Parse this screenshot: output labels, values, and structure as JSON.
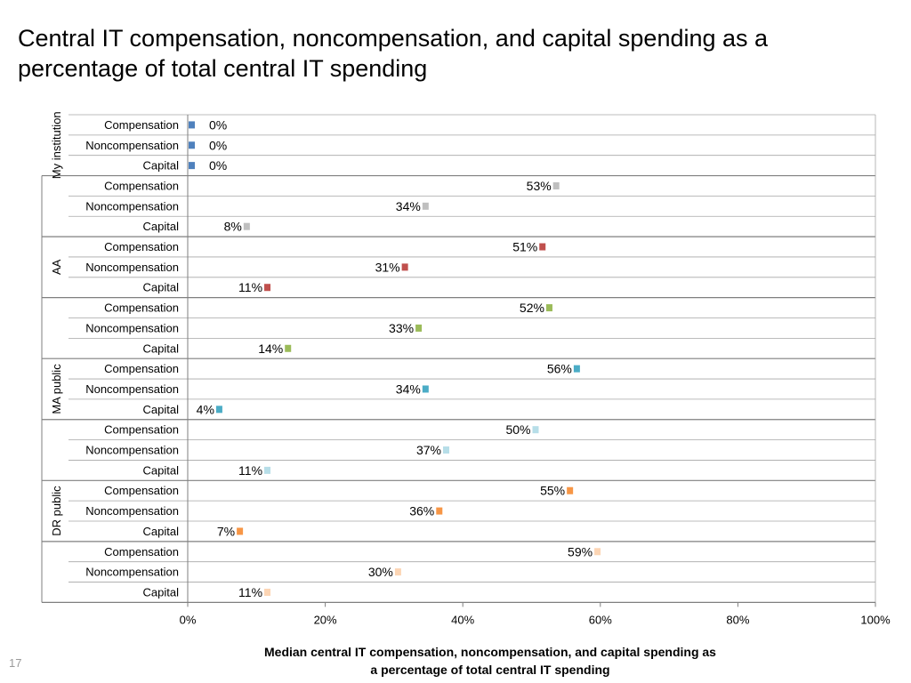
{
  "slide": {
    "title": "Central IT compensation, noncompensation, and capital spending as a percentage of total central IT spending",
    "page_number": "17"
  },
  "chart_data": {
    "type": "bar",
    "orientation": "horizontal",
    "xlabel": "Median central IT compensation, noncompensation, and capital spending as a percentage of total central IT spending",
    "xlim": [
      0,
      100
    ],
    "x_ticks": [
      "0%",
      "20%",
      "40%",
      "60%",
      "80%",
      "100%"
    ],
    "grid": false,
    "groups": [
      {
        "label": "My institution",
        "color": "#4f81bd",
        "categories": [
          "Compensation",
          "Noncompensation",
          "Capital"
        ],
        "values": [
          0,
          0,
          0
        ],
        "value_labels": [
          "0%",
          "0%",
          "0%"
        ]
      },
      {
        "label": "",
        "color": "#bfbfbf",
        "categories": [
          "Compensation",
          "Noncompensation",
          "Capital"
        ],
        "values": [
          53,
          34,
          8
        ],
        "value_labels": [
          "53%",
          "34%",
          "8%"
        ]
      },
      {
        "label": "AA",
        "color": "#c0504d",
        "categories": [
          "Compensation",
          "Noncompensation",
          "Capital"
        ],
        "values": [
          51,
          31,
          11
        ],
        "value_labels": [
          "51%",
          "31%",
          "11%"
        ]
      },
      {
        "label": "",
        "color": "#9bbb59",
        "categories": [
          "Compensation",
          "Noncompensation",
          "Capital"
        ],
        "values": [
          52,
          33,
          14
        ],
        "value_labels": [
          "52%",
          "33%",
          "14%"
        ]
      },
      {
        "label": "MA public",
        "color": "#4bacc6",
        "categories": [
          "Compensation",
          "Noncompensation",
          "Capital"
        ],
        "values": [
          56,
          34,
          4
        ],
        "value_labels": [
          "56%",
          "34%",
          "4%"
        ]
      },
      {
        "label": "",
        "color": "#b7dee8",
        "categories": [
          "Compensation",
          "Noncompensation",
          "Capital"
        ],
        "values": [
          50,
          37,
          11
        ],
        "value_labels": [
          "50%",
          "37%",
          "11%"
        ]
      },
      {
        "label": "DR public",
        "color": "#f79646",
        "categories": [
          "Compensation",
          "Noncompensation",
          "Capital"
        ],
        "values": [
          55,
          36,
          7
        ],
        "value_labels": [
          "55%",
          "36%",
          "7%"
        ]
      },
      {
        "label": "",
        "color": "#fcd5b4",
        "categories": [
          "Compensation",
          "Noncompensation",
          "Capital"
        ],
        "values": [
          59,
          30,
          11
        ],
        "value_labels": [
          "59%",
          "30%",
          "11%"
        ]
      }
    ]
  }
}
